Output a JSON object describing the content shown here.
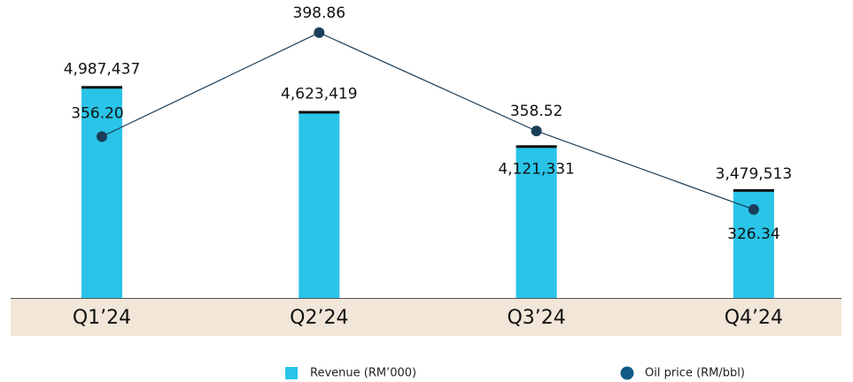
{
  "chart_data": {
    "type": "bar",
    "categories": [
      "Q1’24",
      "Q2’24",
      "Q3’24",
      "Q4’24"
    ],
    "series": [
      {
        "name": "Revenue (RM’000)",
        "type": "bar",
        "color": "#29c4e8",
        "values": [
          4987437,
          4623419,
          4121331,
          3479513
        ],
        "value_labels": [
          "4,987,437",
          "4,623,419",
          "4,121,331",
          "3,479,513"
        ]
      },
      {
        "name": "Oil price (RM/bbl)",
        "type": "line",
        "axis": "y2",
        "color": "#1b3f5a",
        "values": [
          356.2,
          398.86,
          358.52,
          326.34
        ],
        "value_labels": [
          "356.20",
          "398.86",
          "358.52",
          "326.34"
        ]
      }
    ],
    "ylim": [
      1900000,
      6000000
    ],
    "y2lim": [
      290,
      405
    ],
    "legend": "bottom"
  }
}
